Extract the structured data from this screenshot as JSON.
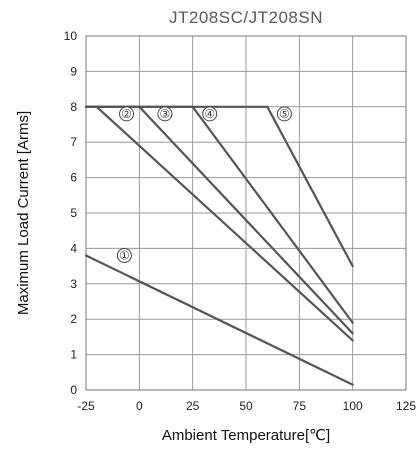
{
  "chart_data": {
    "type": "line",
    "title": "JT208SC/JT208SN",
    "xlabel": "Ambient Temperature[℃]",
    "ylabel": "Maximum Load Current [Arms]",
    "xlim": [
      -25,
      125
    ],
    "ylim": [
      0,
      10
    ],
    "x_ticks": [
      -25,
      0,
      25,
      50,
      75,
      100,
      125
    ],
    "y_ticks": [
      0,
      1,
      2,
      3,
      4,
      5,
      6,
      7,
      8,
      9,
      10
    ],
    "grid": true,
    "legend": "none",
    "series": [
      {
        "name": "①",
        "x": [
          -25,
          100
        ],
        "y": [
          3.8,
          0.15
        ]
      },
      {
        "name": "②",
        "x": [
          -25,
          -20,
          100
        ],
        "y": [
          8,
          8,
          1.4
        ]
      },
      {
        "name": "③",
        "x": [
          -25,
          0,
          100
        ],
        "y": [
          8,
          8,
          1.6
        ]
      },
      {
        "name": "④",
        "x": [
          -25,
          25,
          100
        ],
        "y": [
          8,
          8,
          1.9
        ]
      },
      {
        "name": "⑤",
        "x": [
          -25,
          60,
          100
        ],
        "y": [
          8,
          8,
          3.5
        ]
      }
    ],
    "annotations": [
      {
        "label": "①",
        "x": -7,
        "y": 3.8
      },
      {
        "label": "②",
        "x": -6,
        "y": 7.8
      },
      {
        "label": "③",
        "x": 12,
        "y": 7.8
      },
      {
        "label": "④",
        "x": 33,
        "y": 7.8
      },
      {
        "label": "⑤",
        "x": 68,
        "y": 7.8
      }
    ]
  }
}
